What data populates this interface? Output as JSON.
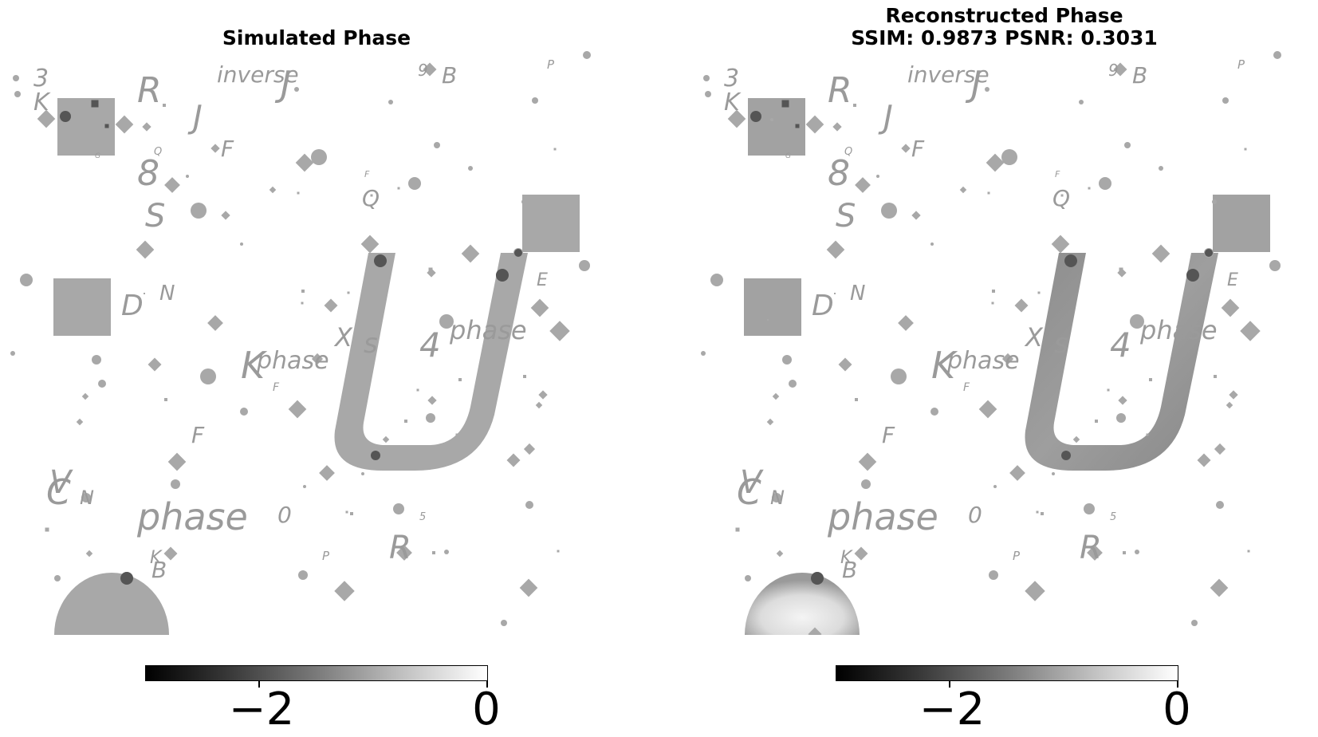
{
  "panels": [
    {
      "title_lines": [
        "Simulated Phase"
      ],
      "colorbar": {
        "colormap": "gray",
        "tick_labels": [
          "−2",
          "0"
        ],
        "tick_values": [
          -2,
          0
        ],
        "range": [
          -3,
          0
        ]
      }
    },
    {
      "title_lines": [
        "Reconstructed Phase",
        "SSIM: 0.9873 PSNR: 0.3031"
      ],
      "colorbar": {
        "colormap": "gray",
        "tick_labels": [
          "−2",
          "0"
        ],
        "tick_values": [
          -2,
          0
        ],
        "range": [
          -3,
          0
        ]
      }
    }
  ],
  "scene_text": [
    "3",
    "K",
    "R",
    "J",
    "inverse",
    "J",
    "9",
    "B",
    "P",
    "G",
    "Q",
    "F",
    "8",
    "F",
    "Q",
    "S",
    "D",
    "N",
    "E",
    "X",
    "s",
    "4",
    "phase",
    "K",
    "phase",
    "F",
    "F",
    "V",
    "C",
    "N",
    "phase",
    "0",
    "5",
    "P",
    "R",
    "K",
    "B"
  ],
  "colors": {
    "background": "#ffffff",
    "shape_gray": "#a8a8a8",
    "dark_gray": "#555555",
    "text_gray": "#9a9a9a"
  }
}
